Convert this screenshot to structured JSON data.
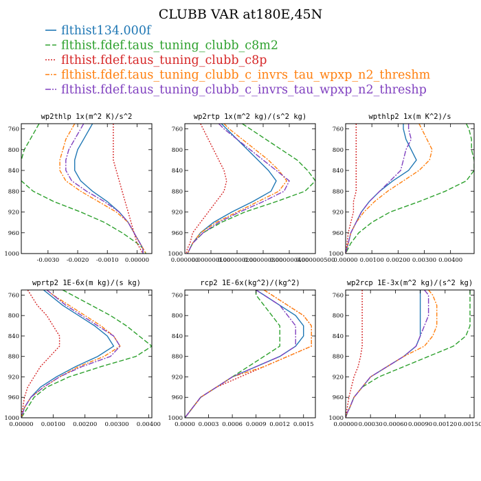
{
  "figure_title": "CLUBB VAR at180E,45N",
  "legend": [
    {
      "label": "flthist134.000f",
      "color": "#1f77b4",
      "dash": ""
    },
    {
      "label": "flthist.fdef.taus_tuning_clubb_c8m2",
      "color": "#2ca02c",
      "dash": "7,3"
    },
    {
      "label": "flthist.fdef.taus_tuning_clubb_c8p",
      "color": "#d62728",
      "dash": "2,2"
    },
    {
      "label": "flthist.fdef.taus_tuning_clubb_c_invrs_tau_wpxp_n2_threshm",
      "color": "#ff7f0e",
      "dash": "6,2,2,2"
    },
    {
      "label": "flthist.fdef.taus_tuning_clubb_c_invrs_tau_wpxp_n2_threshp",
      "color": "#7f3fbf",
      "dash": "8,2,2,2"
    }
  ],
  "chart_data": [
    {
      "type": "line",
      "title": "wp2thlp  1x(m^2 K)/s^2",
      "xlim": [
        -0.0039,
        0.0005
      ],
      "ylim": [
        1000,
        750
      ],
      "xticks": [
        -0.003,
        -0.002,
        -0.001,
        0.0
      ],
      "xtick_labels": [
        "-0.0030",
        "-0.0020",
        "-0.0010",
        "0.00000"
      ],
      "yticks": [
        760,
        800,
        840,
        880,
        920,
        960,
        1000
      ],
      "ytick_labels": [
        "760",
        "800",
        "840",
        "880",
        "920",
        "960",
        "1000"
      ],
      "y": [
        750,
        760,
        780,
        800,
        820,
        840,
        860,
        880,
        900,
        920,
        940,
        960,
        980,
        990,
        1000
      ],
      "series": [
        {
          "name": "flthist134.000f",
          "values": [
            -0.0015,
            -0.0016,
            -0.0018,
            -0.002,
            -0.0021,
            -0.0021,
            -0.0019,
            -0.0015,
            -0.001,
            -0.0006,
            -0.0003,
            -0.0001,
            0.0001,
            0.0002,
            0.0002
          ]
        },
        {
          "name": "flthist.fdef.taus_tuning_clubb_c8m2",
          "values": [
            -0.0033,
            -0.0034,
            -0.0036,
            -0.0038,
            -0.0039,
            -0.004,
            -0.0039,
            -0.0035,
            -0.0028,
            -0.0019,
            -0.0011,
            -0.0005,
            0.0,
            0.0002,
            0.0003
          ]
        },
        {
          "name": "flthist.fdef.taus_tuning_clubb_c8p",
          "values": [
            -0.0008,
            -0.0008,
            -0.0008,
            -0.0008,
            -0.0008,
            -0.0007,
            -0.0006,
            -0.0005,
            -0.0004,
            -0.0003,
            -0.0002,
            -0.0001,
            0.0,
            0.0001,
            0.0002
          ]
        },
        {
          "name": "flthist.fdef.taus_tuning_clubb_c_invrs_tau_wpxp_n2_threshm",
          "values": [
            -0.0021,
            -0.0022,
            -0.0024,
            -0.0025,
            -0.0026,
            -0.0026,
            -0.0024,
            -0.0019,
            -0.0013,
            -0.0007,
            -0.0003,
            -0.0001,
            0.0001,
            0.0002,
            0.0003
          ]
        },
        {
          "name": "flthist.fdef.taus_tuning_clubb_c_invrs_tau_wpxp_n2_threshp",
          "values": [
            -0.0018,
            -0.0019,
            -0.0021,
            -0.0023,
            -0.0024,
            -0.0024,
            -0.0022,
            -0.0017,
            -0.0011,
            -0.0006,
            -0.0003,
            -0.0001,
            0.0001,
            0.0002,
            0.0002
          ]
        }
      ]
    },
    {
      "type": "line",
      "title": "wp2rtp  1x(m^2 kg)/(s^2 kg)",
      "xlim": [
        0.0,
        5e-07
      ],
      "ylim": [
        1000,
        750
      ],
      "xticks": [
        0.0,
        1e-07,
        2e-07,
        3e-07,
        4e-07,
        5e-07
      ],
      "xtick_labels": [
        "0.000000",
        "0.000000100",
        "0.000000200",
        "0.000000300",
        "0.000000400",
        "0.000000500"
      ],
      "yticks": [
        760,
        800,
        840,
        880,
        920,
        960,
        1000
      ],
      "ytick_labels": [
        "760",
        "800",
        "840",
        "880",
        "920",
        "960",
        "1000"
      ],
      "y": [
        750,
        760,
        780,
        800,
        820,
        840,
        860,
        880,
        900,
        920,
        940,
        960,
        980,
        990,
        1000
      ],
      "series": [
        {
          "name": "flthist134.000f",
          "values": [
            1.4e-07,
            1.6e-07,
            2e-07,
            2.4e-07,
            2.8e-07,
            3.2e-07,
            3.5e-07,
            3.3e-07,
            2.6e-07,
            1.8e-07,
            1.1e-07,
            6e-08,
            3e-08,
            2e-08,
            1e-08
          ]
        },
        {
          "name": "flthist.fdef.taus_tuning_clubb_c8m2",
          "values": [
            2.2e-07,
            2.5e-07,
            3.1e-07,
            3.7e-07,
            4.3e-07,
            4.7e-07,
            5e-07,
            4.6e-07,
            3.5e-07,
            2.3e-07,
            1.4e-07,
            7e-08,
            3e-08,
            2e-08,
            1e-08
          ]
        },
        {
          "name": "flthist.fdef.taus_tuning_clubb_c8p",
          "values": [
            6e-08,
            7e-08,
            9e-08,
            1.1e-07,
            1.3e-07,
            1.5e-07,
            1.6e-07,
            1.5e-07,
            1.2e-07,
            9e-08,
            6e-08,
            3e-08,
            2e-08,
            1e-08,
            5e-09
          ]
        },
        {
          "name": "flthist.fdef.taus_tuning_clubb_c_invrs_tau_wpxp_n2_threshm",
          "values": [
            1.5e-07,
            1.7e-07,
            2.2e-07,
            2.7e-07,
            3.2e-07,
            3.6e-07,
            3.9e-07,
            3.6e-07,
            2.8e-07,
            2e-07,
            1.2e-07,
            6e-08,
            3e-08,
            2e-08,
            1e-08
          ]
        },
        {
          "name": "flthist.fdef.taus_tuning_clubb_c_invrs_tau_wpxp_n2_threshp",
          "values": [
            1.3e-07,
            1.5e-07,
            2e-07,
            2.5e-07,
            3e-07,
            3.5e-07,
            4e-07,
            3.8e-07,
            3e-07,
            2.1e-07,
            1.3e-07,
            7e-08,
            3e-08,
            2e-08,
            1e-08
          ]
        }
      ]
    },
    {
      "type": "line",
      "title": "wpthlp2  1x(m K^2)/s",
      "xlim": [
        0.0,
        0.0049
      ],
      "ylim": [
        1000,
        750
      ],
      "xticks": [
        0.0,
        0.001,
        0.002,
        0.003,
        0.004
      ],
      "xtick_labels": [
        "0.00000",
        "0.00100",
        "0.00200",
        "0.00300",
        "0.00400"
      ],
      "yticks": [
        760,
        800,
        840,
        880,
        920,
        960,
        1000
      ],
      "ytick_labels": [
        "760",
        "800",
        "840",
        "880",
        "920",
        "960",
        "1000"
      ],
      "y": [
        750,
        760,
        780,
        800,
        820,
        840,
        860,
        880,
        900,
        920,
        940,
        960,
        980,
        990,
        1000
      ],
      "series": [
        {
          "name": "flthist134.000f",
          "values": [
            0.0022,
            0.0022,
            0.0023,
            0.0025,
            0.0027,
            0.0024,
            0.0018,
            0.0013,
            0.0009,
            0.0006,
            0.0004,
            0.0002,
            0.0001,
            5e-05,
            0.0
          ]
        },
        {
          "name": "flthist.fdef.taus_tuning_clubb_c8m2",
          "values": [
            0.0046,
            0.0047,
            0.0048,
            0.0048,
            0.0049,
            0.0049,
            0.0046,
            0.0038,
            0.0028,
            0.0017,
            0.001,
            0.0005,
            0.0002,
            0.0001,
            0.0
          ]
        },
        {
          "name": "flthist.fdef.taus_tuning_clubb_c8p",
          "values": [
            0.0004,
            0.0004,
            0.0004,
            0.0004,
            0.0004,
            0.0004,
            0.0004,
            0.0004,
            0.0003,
            0.0003,
            0.0002,
            0.0001,
            5e-05,
            3e-05,
            0.0
          ]
        },
        {
          "name": "flthist.fdef.taus_tuning_clubb_c_invrs_tau_wpxp_n2_threshm",
          "values": [
            0.0028,
            0.0029,
            0.0031,
            0.0033,
            0.0032,
            0.0028,
            0.0022,
            0.0016,
            0.0011,
            0.0007,
            0.0004,
            0.0002,
            0.0001,
            5e-05,
            0.0
          ]
        },
        {
          "name": "flthist.fdef.taus_tuning_clubb_c_invrs_tau_wpxp_n2_threshp",
          "values": [
            0.0024,
            0.0024,
            0.0025,
            0.0023,
            0.0022,
            0.0021,
            0.0017,
            0.0013,
            0.0009,
            0.0006,
            0.0004,
            0.0002,
            0.0001,
            5e-05,
            0.0
          ]
        }
      ]
    },
    {
      "type": "line",
      "title": "wprtp2  1E-6x(m kg)/(s kg)",
      "xlim": [
        0.0,
        0.0041
      ],
      "ylim": [
        1000,
        750
      ],
      "xticks": [
        0.0,
        0.001,
        0.002,
        0.003,
        0.004
      ],
      "xtick_labels": [
        "0.00000",
        "0.00100",
        "0.00200",
        "0.00300",
        "0.00400"
      ],
      "yticks": [
        760,
        800,
        840,
        880,
        920,
        960,
        1000
      ],
      "ytick_labels": [
        "760",
        "800",
        "840",
        "880",
        "920",
        "960",
        "1000"
      ],
      "y": [
        750,
        760,
        780,
        800,
        820,
        840,
        860,
        880,
        900,
        920,
        940,
        960,
        980,
        990,
        1000
      ],
      "series": [
        {
          "name": "flthist134.000f",
          "values": [
            0.0007,
            0.0009,
            0.0013,
            0.0018,
            0.0023,
            0.0027,
            0.0029,
            0.0024,
            0.0017,
            0.0011,
            0.0006,
            0.0003,
            0.0001,
            5e-05,
            0.0
          ]
        },
        {
          "name": "flthist.fdef.taus_tuning_clubb_c8m2",
          "values": [
            0.0013,
            0.0016,
            0.0022,
            0.0028,
            0.0033,
            0.0037,
            0.0041,
            0.0036,
            0.0025,
            0.0015,
            0.0008,
            0.0004,
            0.0002,
            0.0001,
            0.0
          ]
        },
        {
          "name": "flthist.fdef.taus_tuning_clubb_c8p",
          "values": [
            0.0002,
            0.0003,
            0.0005,
            0.0008,
            0.001,
            0.0012,
            0.0012,
            0.0009,
            0.0006,
            0.0004,
            0.0002,
            0.0001,
            5e-05,
            2e-05,
            0.0
          ]
        },
        {
          "name": "flthist.fdef.taus_tuning_clubb_c_invrs_tau_wpxp_n2_threshm",
          "values": [
            0.0008,
            0.001,
            0.0015,
            0.002,
            0.0025,
            0.0029,
            0.0031,
            0.0026,
            0.0018,
            0.0012,
            0.0007,
            0.0003,
            0.0001,
            5e-05,
            0.0
          ]
        },
        {
          "name": "flthist.fdef.taus_tuning_clubb_c_invrs_tau_wpxp_n2_threshp",
          "values": [
            0.0008,
            0.001,
            0.0014,
            0.0019,
            0.0024,
            0.0029,
            0.0031,
            0.0028,
            0.0019,
            0.0012,
            0.0007,
            0.0003,
            0.0001,
            5e-05,
            0.0
          ]
        }
      ]
    },
    {
      "type": "line",
      "title": "rcp2  1E-6x(kg^2)/(kg^2)",
      "xlim": [
        0.0,
        0.00165
      ],
      "ylim": [
        1000,
        750
      ],
      "xticks": [
        0.0,
        0.0003,
        0.0006,
        0.0009,
        0.0012,
        0.0015
      ],
      "xtick_labels": [
        "0.0000",
        "0.0003",
        "0.0006",
        "0.0009",
        "0.0012",
        "0.0015"
      ],
      "yticks": [
        760,
        800,
        840,
        880,
        920,
        960,
        1000
      ],
      "ytick_labels": [
        "760",
        "800",
        "840",
        "880",
        "920",
        "960",
        "1000"
      ],
      "y": [
        750,
        760,
        780,
        800,
        820,
        840,
        860,
        880,
        900,
        920,
        940,
        960,
        980,
        990,
        1000
      ],
      "series": [
        {
          "name": "flthist134.000f",
          "values": [
            0.0009,
            0.001,
            0.0012,
            0.0014,
            0.0015,
            0.0015,
            0.0014,
            0.0012,
            0.0009,
            0.0006,
            0.0004,
            0.0002,
            0.0001,
            5e-05,
            0.0
          ]
        },
        {
          "name": "flthist.fdef.taus_tuning_clubb_c8m2",
          "values": [
            0.0009,
            0.0009,
            0.001,
            0.0011,
            0.0012,
            0.0012,
            0.0012,
            0.001,
            0.0008,
            0.0006,
            0.0004,
            0.0002,
            0.0001,
            5e-05,
            0.0
          ]
        },
        {
          "name": "flthist.fdef.taus_tuning_clubb_c8p",
          "values": [
            0.001,
            0.0011,
            0.0013,
            0.0015,
            0.0016,
            0.0016,
            0.0016,
            0.0013,
            0.001,
            0.0007,
            0.0004,
            0.0002,
            0.0001,
            5e-05,
            0.0
          ]
        },
        {
          "name": "flthist.fdef.taus_tuning_clubb_c_invrs_tau_wpxp_n2_threshm",
          "values": [
            0.001,
            0.0011,
            0.0013,
            0.0015,
            0.0016,
            0.0016,
            0.0016,
            0.0013,
            0.001,
            0.0006,
            0.0004,
            0.0002,
            0.0001,
            5e-05,
            0.0
          ]
        },
        {
          "name": "flthist.fdef.taus_tuning_clubb_c_invrs_tau_wpxp_n2_threshp",
          "values": [
            0.0009,
            0.001,
            0.0012,
            0.0013,
            0.0014,
            0.0014,
            0.0014,
            0.0012,
            0.0009,
            0.0006,
            0.0004,
            0.0002,
            0.0001,
            5e-05,
            0.0
          ]
        }
      ]
    },
    {
      "type": "line",
      "title": "wp2rcp  1E-3x(m^2 kg)/(s^2 kg)",
      "xlim": [
        0.0,
        0.00155
      ],
      "ylim": [
        1000,
        750
      ],
      "xticks": [
        0.0,
        0.0003,
        0.0006,
        0.0009,
        0.0012,
        0.0015
      ],
      "xtick_labels": [
        "0.00000",
        "0.00030",
        "0.00060",
        "0.00090",
        "0.00120",
        "0.00150"
      ],
      "yticks": [
        760,
        800,
        840,
        880,
        920,
        960,
        1000
      ],
      "ytick_labels": [
        "760",
        "800",
        "840",
        "880",
        "920",
        "960",
        "1000"
      ],
      "y": [
        750,
        760,
        780,
        800,
        820,
        840,
        860,
        880,
        900,
        920,
        940,
        960,
        980,
        990,
        1000
      ],
      "series": [
        {
          "name": "flthist134.000f",
          "values": [
            0.0009,
            0.0009,
            0.0009,
            0.0009,
            0.0009,
            0.0009,
            0.00085,
            0.0007,
            0.0005,
            0.0003,
            0.0002,
            0.0001,
            5e-05,
            2e-05,
            0.0
          ]
        },
        {
          "name": "flthist.fdef.taus_tuning_clubb_c8m2",
          "values": [
            0.0015,
            0.0015,
            0.0015,
            0.0015,
            0.0015,
            0.00145,
            0.0013,
            0.001,
            0.0007,
            0.0004,
            0.0002,
            0.0001,
            5e-05,
            2e-05,
            0.0
          ]
        },
        {
          "name": "flthist.fdef.taus_tuning_clubb_c8p",
          "values": [
            0.0002,
            0.0002,
            0.0002,
            0.0002,
            0.0002,
            0.0002,
            0.0002,
            0.00018,
            0.00015,
            0.0001,
            7e-05,
            4e-05,
            2e-05,
            1e-05,
            0.0
          ]
        },
        {
          "name": "flthist.fdef.taus_tuning_clubb_c_invrs_tau_wpxp_n2_threshm",
          "values": [
            0.001,
            0.00105,
            0.0011,
            0.0011,
            0.0011,
            0.00105,
            0.00095,
            0.0007,
            0.0005,
            0.0003,
            0.0002,
            0.0001,
            5e-05,
            2e-05,
            0.0
          ]
        },
        {
          "name": "flthist.fdef.taus_tuning_clubb_c_invrs_tau_wpxp_n2_threshp",
          "values": [
            0.00095,
            0.001,
            0.001,
            0.001,
            0.00095,
            0.0009,
            0.00085,
            0.0007,
            0.0005,
            0.0003,
            0.0002,
            0.0001,
            5e-05,
            2e-05,
            0.0
          ]
        }
      ]
    }
  ]
}
